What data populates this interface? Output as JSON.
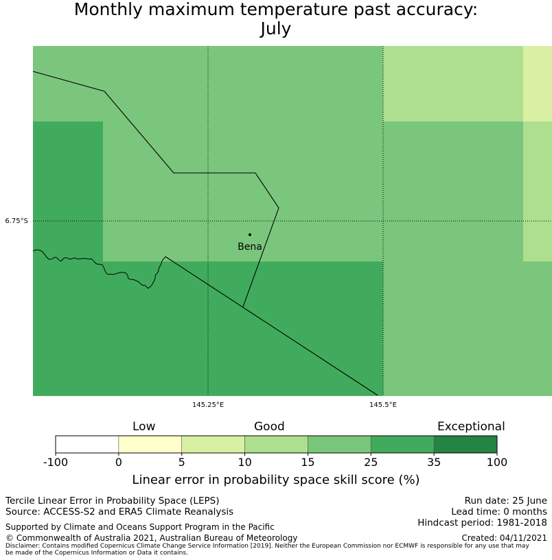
{
  "title": {
    "line1": "Monthly maximum temperature past accuracy:",
    "line2": "July"
  },
  "map": {
    "place_label": "Bena",
    "lat_label": "6.75°S",
    "lon_labels": [
      "145.25°E",
      "145.5°E"
    ],
    "grid": [
      [
        "#7ac67d",
        "#7ac67d",
        "#7ac67d",
        "#addf8f",
        "#d9f0a3"
      ],
      [
        "#41ab5d",
        "#7ac67d",
        "#7ac67d",
        "#7ac67d",
        "#addf8f"
      ],
      [
        "#41ab5d",
        "#41ab5d",
        "#41ab5d",
        "#7ac67d",
        "#7ac67d"
      ]
    ]
  },
  "colorbar": {
    "categories": [
      "Low",
      "Good",
      "Exceptional"
    ],
    "ticks": [
      "-100",
      "0",
      "5",
      "10",
      "15",
      "25",
      "35",
      "100"
    ],
    "colors": [
      "#ffffff",
      "#ffffcc",
      "#d9f0a3",
      "#addf8f",
      "#78c679",
      "#41ab5d",
      "#238443"
    ],
    "caption": "Linear error in probability space skill score (%)"
  },
  "footer": {
    "left_line1": "Tercile Linear Error in Probability Space (LEPS)",
    "left_line2": "Source: ACCESS-S2 and ERA5 Climate Reanalysis",
    "run_date": "Run date: 25 June",
    "lead_time": "Lead time: 0 months",
    "hindcast": "Hindcast period: 1981-2018",
    "supported": "Supported by Climate and Oceans Support Program in the Pacific",
    "copyright": "© Commonwealth of Australia 2021, Australian Bureau of Meteorology",
    "created": "Created: 04/11/2021",
    "disclaimer1": "Disclaimer: Contains modified Copernicus Climate Change Service Information [2019]. Neither the European Commission nor ECMWF is responsible for any use that may",
    "disclaimer2": "be made of the Copernicus Information or Data it contains."
  }
}
